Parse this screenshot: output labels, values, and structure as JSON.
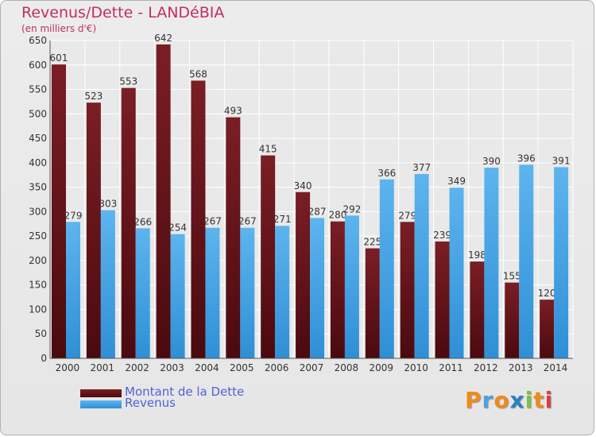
{
  "header": {
    "title": "Revenus/Dette - LANDéBIA",
    "subtitle": "(en milliers d'€)"
  },
  "legend": {
    "debt_label": "Montant de la Dette",
    "revenue_label": "Revenus"
  },
  "logo": {
    "text": "Proxiti"
  },
  "colors": {
    "debt": "#7a1e24",
    "debt_dark": "#4a0a0f",
    "revenue": "#4ea8e6",
    "revenue_light": "#6cbcf0",
    "accent": "#c0305a",
    "legend_text": "#4f62d8",
    "logo_letters": [
      "#f08a1c",
      "#4aa3df",
      "#f08a1c",
      "#2b7fc4",
      "#7ac143",
      "#f08a1c",
      "#e23c3c"
    ]
  },
  "chart_data": {
    "type": "bar",
    "title": "Revenus/Dette - LANDéBIA",
    "ylabel": "(en milliers d'€)",
    "xlabel": "",
    "ylim": [
      0,
      650
    ],
    "yticks": [
      0,
      50,
      100,
      150,
      200,
      250,
      300,
      350,
      400,
      450,
      500,
      550,
      600,
      650
    ],
    "grid": true,
    "categories": [
      "2000",
      "2001",
      "2002",
      "2003",
      "2004",
      "2005",
      "2006",
      "2007",
      "2008",
      "2009",
      "2010",
      "2011",
      "2012",
      "2013",
      "2014"
    ],
    "series": [
      {
        "name": "Montant de la Dette",
        "values": [
          601,
          523,
          553,
          642,
          568,
          493,
          415,
          340,
          280,
          225,
          279,
          239,
          198,
          155,
          120
        ]
      },
      {
        "name": "Revenus",
        "values": [
          279,
          303,
          266,
          254,
          267,
          267,
          271,
          287,
          292,
          366,
          377,
          349,
          390,
          396,
          391
        ]
      }
    ]
  }
}
